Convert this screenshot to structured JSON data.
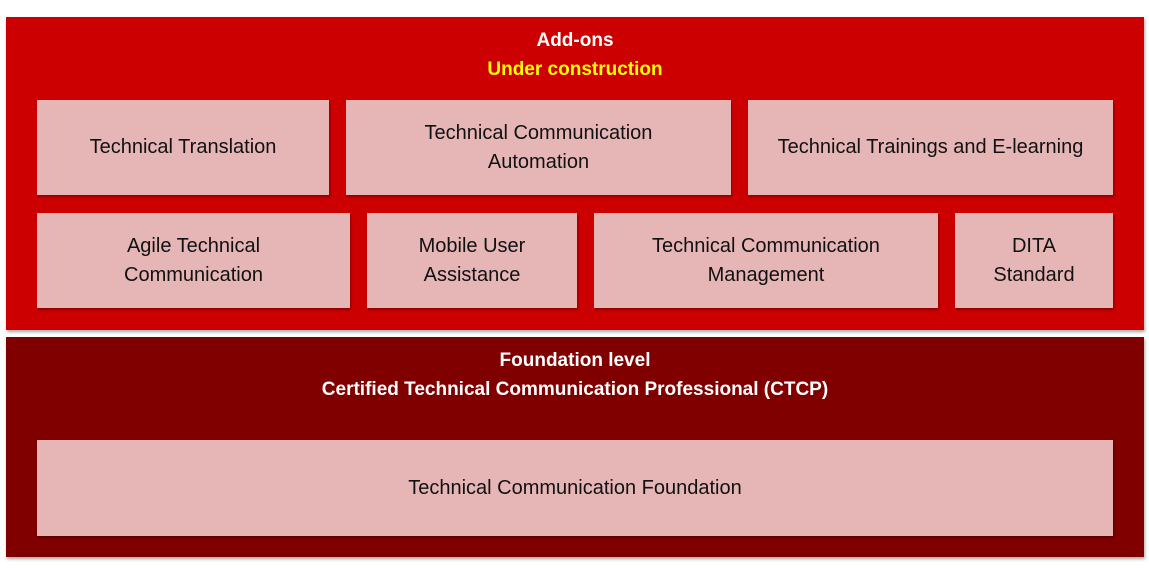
{
  "addons": {
    "title": "Add-ons",
    "subtitle": "Under construction",
    "colors": {
      "panel": "#cc0000",
      "subtitle": "#ffff00",
      "box": "#e6b6b6"
    },
    "row1": [
      {
        "label": "Technical Translation"
      },
      {
        "label": "Technical Communication\nAutomation"
      },
      {
        "label": "Technical Trainings and E-learning"
      }
    ],
    "row2": [
      {
        "label": "Agile Technical\nCommunication"
      },
      {
        "label": "Mobile User\nAssistance"
      },
      {
        "label": "Technical Communication\nManagement"
      },
      {
        "label": "DITA\nStandard"
      }
    ]
  },
  "foundation": {
    "title": "Foundation level",
    "subtitle": "Certified Technical Communication Professional (CTCP)",
    "colors": {
      "panel": "#800000"
    },
    "box": {
      "label": "Technical Communication Foundation"
    }
  }
}
